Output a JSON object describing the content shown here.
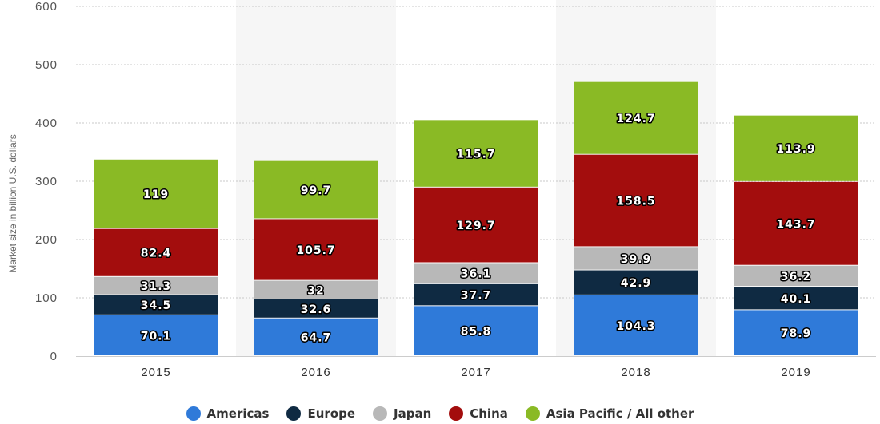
{
  "chart_data": {
    "type": "bar",
    "stacked": true,
    "categories": [
      "2015",
      "2016",
      "2017",
      "2018",
      "2019"
    ],
    "series": [
      {
        "name": "Americas",
        "color": "#2f7ad9",
        "values": [
          70.1,
          64.7,
          85.8,
          104.3,
          78.9
        ]
      },
      {
        "name": "Europe",
        "color": "#0f2a42",
        "values": [
          34.5,
          32.6,
          37.7,
          42.9,
          40.1
        ]
      },
      {
        "name": "Japan",
        "color": "#b8b8b8",
        "values": [
          31.3,
          32,
          36.1,
          39.9,
          36.2
        ]
      },
      {
        "name": "China",
        "color": "#a30d0d",
        "values": [
          82.4,
          105.7,
          129.7,
          158.5,
          143.7
        ]
      },
      {
        "name": "Asia Pacific / All other",
        "color": "#8aba25",
        "values": [
          119,
          99.7,
          115.7,
          124.7,
          113.9
        ]
      }
    ],
    "title": "",
    "xlabel": "",
    "ylabel": "Market size in billion U.S. dollars",
    "ylim": [
      0,
      600
    ],
    "yticks": [
      0,
      100,
      200,
      300,
      400,
      500,
      600
    ],
    "grid": true,
    "legend_position": "bottom"
  }
}
